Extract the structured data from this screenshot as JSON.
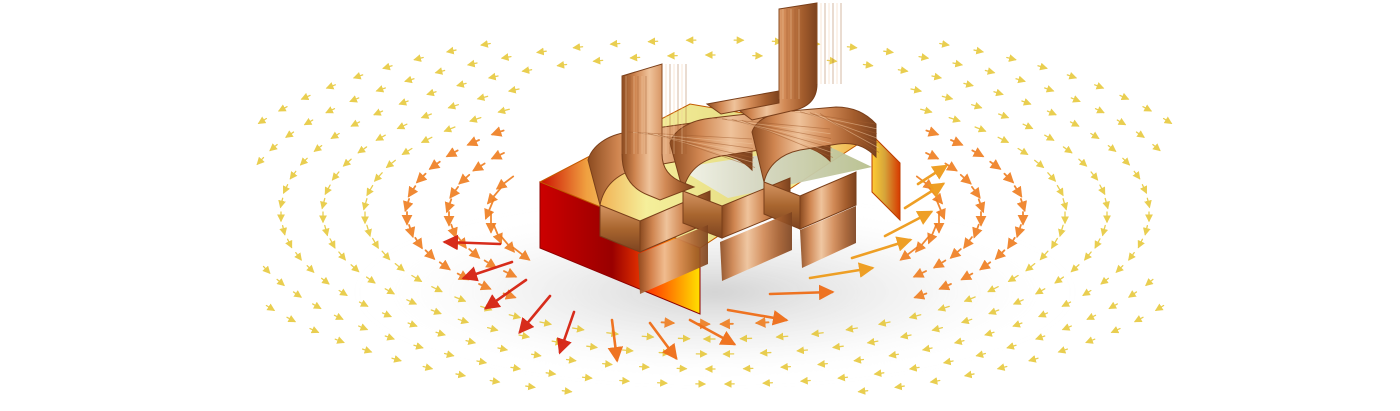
{
  "image": {
    "subject": "magnetic-core-inductor-field",
    "background": "#ffffff"
  },
  "colors": {
    "core_hot": "#d40000",
    "core_mid": "#ff6a00",
    "core_warm": "#f6d55c",
    "core_cool": "#d8e06b",
    "copper_light": "#e7b284",
    "copper_mid": "#c97b43",
    "copper_dark": "#8f4d22",
    "arrow_hot": "#d51f0f",
    "arrow_mid": "#f07b1d",
    "arrow_cool": "#e8c31f",
    "shadow": "#b7b7b7"
  }
}
